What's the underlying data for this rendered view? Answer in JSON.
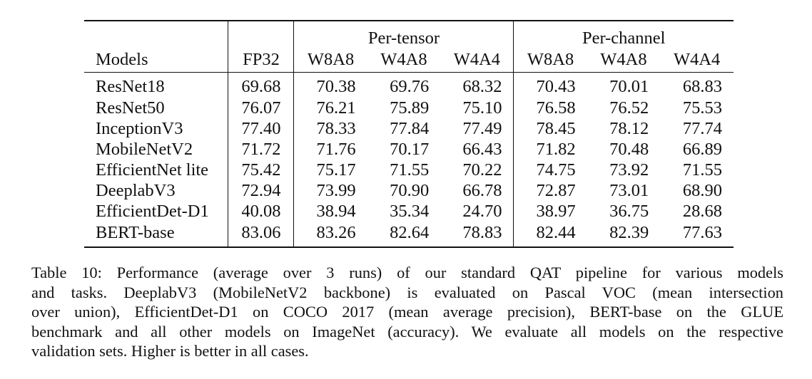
{
  "table": {
    "group_headers": {
      "per_tensor": "Per-tensor",
      "per_channel": "Per-channel"
    },
    "columns": [
      "Models",
      "FP32",
      "W8A8",
      "W4A8",
      "W4A4",
      "W8A8",
      "W4A8",
      "W4A4"
    ],
    "rows": [
      [
        "ResNet18",
        "69.68",
        "70.38",
        "69.76",
        "68.32",
        "70.43",
        "70.01",
        "68.83"
      ],
      [
        "ResNet50",
        "76.07",
        "76.21",
        "75.89",
        "75.10",
        "76.58",
        "76.52",
        "75.53"
      ],
      [
        "InceptionV3",
        "77.40",
        "78.33",
        "77.84",
        "77.49",
        "78.45",
        "78.12",
        "77.74"
      ],
      [
        "MobileNetV2",
        "71.72",
        "71.76",
        "70.17",
        "66.43",
        "71.82",
        "70.48",
        "66.89"
      ],
      [
        "EfficientNet lite",
        "75.42",
        "75.17",
        "71.55",
        "70.22",
        "74.75",
        "73.92",
        "71.55"
      ],
      [
        "DeeplabV3",
        "72.94",
        "73.99",
        "70.90",
        "66.78",
        "72.87",
        "73.01",
        "68.90"
      ],
      [
        "EfficientDet-D1",
        "40.08",
        "38.94",
        "35.34",
        "24.70",
        "38.97",
        "36.75",
        "28.68"
      ],
      [
        "BERT-base",
        "83.06",
        "83.26",
        "82.64",
        "78.83",
        "82.44",
        "82.39",
        "77.63"
      ]
    ]
  },
  "caption": {
    "lines": [
      "Table 10: Performance (average over 3 runs) of our standard QAT pipeline for various models",
      "and tasks. DeeplabV3 (MobileNetV2 backbone) is evaluated on Pascal VOC (mean intersection",
      "over union), EfficientDet-D1 on COCO 2017 (mean average precision), BERT-base on the GLUE",
      "benchmark and all other models on ImageNet (accuracy). We evaluate all models on the respective",
      "validation sets. Higher is better in all cases."
    ]
  }
}
